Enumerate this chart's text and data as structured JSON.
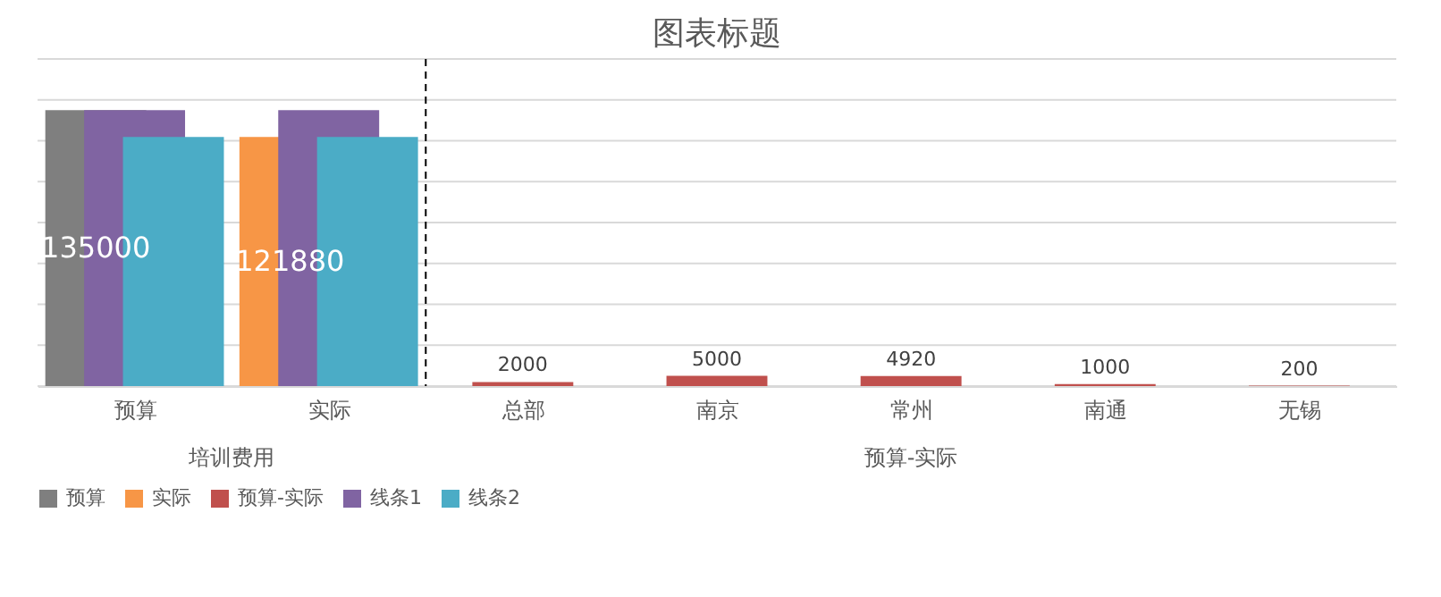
{
  "chart_data": {
    "type": "bar",
    "title": "图表标题",
    "categories": [
      "预算",
      "实际",
      "总部",
      "南京",
      "常州",
      "南通",
      "无锡"
    ],
    "series": [
      {
        "name": "预算",
        "color": "#7f7f7f",
        "values": [
          135000,
          null,
          null,
          null,
          null,
          null,
          null
        ],
        "value_labels": [
          "135000",
          null,
          null,
          null,
          null,
          null,
          null
        ]
      },
      {
        "name": "实际",
        "color": "#f79646",
        "values": [
          null,
          121880,
          null,
          null,
          null,
          null,
          null
        ],
        "value_labels": [
          null,
          "121880",
          null,
          null,
          null,
          null,
          null
        ]
      },
      {
        "name": "预算-实际",
        "color": "#c0504d",
        "values": [
          null,
          null,
          2000,
          5000,
          4920,
          1000,
          200
        ],
        "value_labels": [
          null,
          null,
          "2000",
          "5000",
          "4920",
          "1000",
          "200"
        ]
      },
      {
        "name": "线条1",
        "color": "#8064a2",
        "values": [
          135000,
          135000,
          null,
          null,
          null,
          null,
          null
        ]
      },
      {
        "name": "线条2",
        "color": "#4bacc6",
        "values": [
          121880,
          121880,
          null,
          null,
          null,
          null,
          null
        ]
      }
    ],
    "ylim": [
      0,
      160000
    ],
    "yticks": [
      {
        "value": 0,
        "label": null
      },
      {
        "value": 20000,
        "label": null
      },
      {
        "value": 40000,
        "label": null
      },
      {
        "value": 60000,
        "label": null
      },
      {
        "value": 80000,
        "label": null
      },
      {
        "value": 100000,
        "label": null
      },
      {
        "value": 120000,
        "label": null
      },
      {
        "value": 140000,
        "label": null
      },
      {
        "value": 160000,
        "label": null
      }
    ],
    "tick_labels": "x",
    "grid": "y",
    "legend": "bottom",
    "ref_lines": [
      {
        "axis": "x",
        "value": "实际",
        "line_style": "dashed",
        "color": "#000000"
      }
    ],
    "annotations": [
      "培训费用",
      "预算-实际"
    ]
  }
}
